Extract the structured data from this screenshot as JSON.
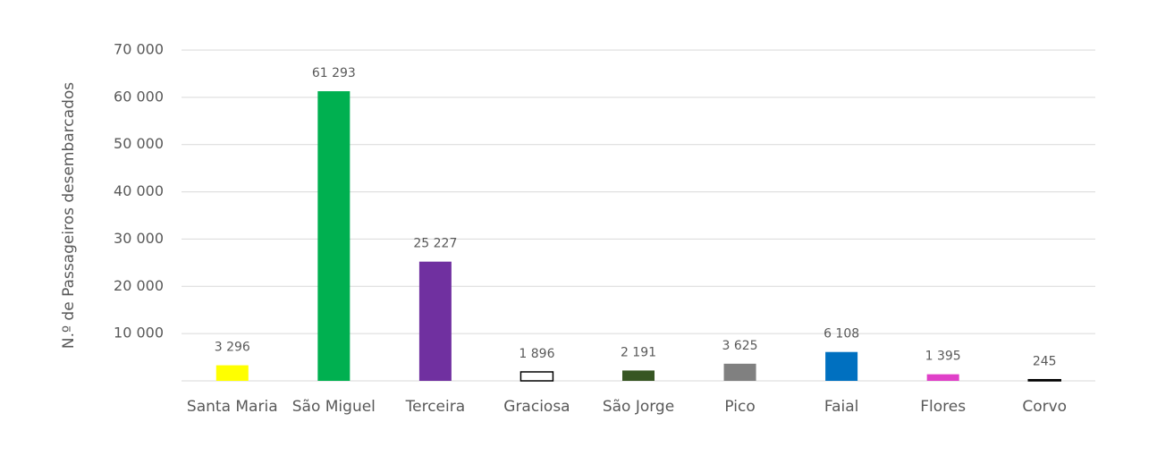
{
  "chart_data": {
    "type": "bar",
    "y_label": "N.º de Passageiros desembarcados",
    "categories": [
      "Santa Maria",
      "São Miguel",
      "Terceira",
      "Graciosa",
      "São Jorge",
      "Pico",
      "Faial",
      "Flores",
      "Corvo"
    ],
    "values": [
      3296,
      61293,
      25227,
      1896,
      2191,
      3625,
      6108,
      1395,
      245
    ],
    "value_labels": [
      "3 296",
      "61 293",
      "25 227",
      "1 896",
      "2 191",
      "3 625",
      "6 108",
      "1 395",
      "245"
    ],
    "colors": [
      "#ffff00",
      "#00b050",
      "#7030a0",
      "#ffffff",
      "#375623",
      "#808080",
      "#0070c0",
      "#e040c8",
      "#ffffff"
    ],
    "ylim": [
      0,
      70000
    ],
    "yticks": [
      {
        "value": 10000,
        "label": "10 000"
      },
      {
        "value": 20000,
        "label": "20 000"
      },
      {
        "value": 30000,
        "label": "30 000"
      },
      {
        "value": 40000,
        "label": "40 000"
      },
      {
        "value": 50000,
        "label": "50 000"
      },
      {
        "value": 60000,
        "label": "60 000"
      },
      {
        "value": 70000,
        "label": "70 000"
      }
    ],
    "grid": true
  }
}
